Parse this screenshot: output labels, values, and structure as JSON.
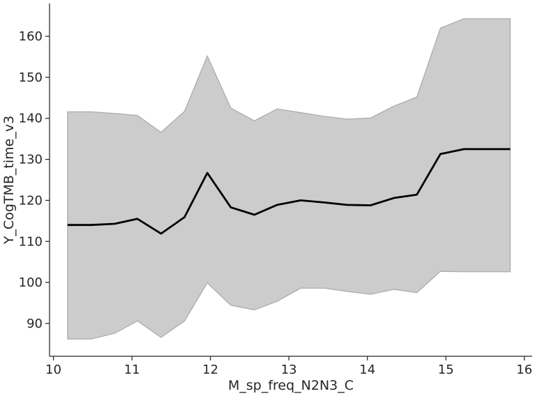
{
  "chart_data": {
    "type": "line",
    "title": "",
    "xlabel": "M_sp_freq_N2N3_C",
    "ylabel": "Y_CogTMB_time_v3",
    "xlim": [
      9.95,
      16.1
    ],
    "ylim": [
      82,
      168
    ],
    "xticks": [
      10,
      11,
      12,
      13,
      14,
      15,
      16
    ],
    "yticks": [
      90,
      100,
      110,
      120,
      130,
      140,
      150,
      160
    ],
    "grid": false,
    "legend": "none",
    "colors": {
      "line": "#000000",
      "band_fill": "#cccccc",
      "band_edge": "#a8a8a8",
      "axis": "#262626"
    },
    "x": [
      10.18,
      10.48,
      10.78,
      11.07,
      11.37,
      11.67,
      11.96,
      12.26,
      12.56,
      12.85,
      13.15,
      13.45,
      13.74,
      14.04,
      14.34,
      14.63,
      14.93,
      15.23,
      15.52,
      15.82
    ],
    "series": [
      {
        "values": [
          114.0,
          114.0,
          114.3,
          115.5,
          111.9,
          115.9,
          126.7,
          118.3,
          116.5,
          118.9,
          120.0,
          119.5,
          118.9,
          118.8,
          120.6,
          121.4,
          131.3,
          132.5,
          132.5,
          132.5
        ],
        "lower": [
          86.2,
          86.2,
          87.6,
          90.6,
          86.6,
          90.6,
          99.9,
          94.4,
          93.3,
          95.4,
          98.6,
          98.6,
          97.8,
          97.1,
          98.3,
          97.5,
          102.7,
          102.6,
          102.6,
          102.6
        ],
        "upper": [
          141.6,
          141.6,
          141.2,
          140.7,
          136.6,
          141.7,
          155.2,
          142.5,
          139.4,
          142.3,
          141.4,
          140.5,
          139.8,
          140.1,
          143.0,
          145.2,
          162.0,
          164.3,
          164.3,
          164.3
        ]
      }
    ]
  }
}
